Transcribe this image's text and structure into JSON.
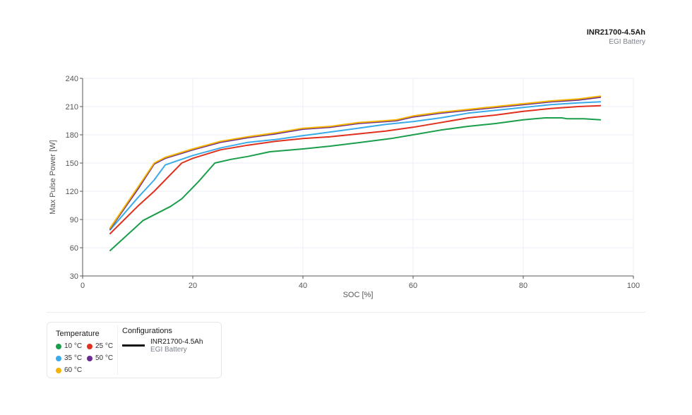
{
  "header": {
    "title": "INR21700-4.5Ah",
    "subtitle": "EGI Battery"
  },
  "legend": {
    "temperature_title": "Temperature",
    "temperatures": [
      {
        "label": "10 °C",
        "color": "#1a9e4a"
      },
      {
        "label": "25 °C",
        "color": "#e0301e"
      },
      {
        "label": "35 °C",
        "color": "#3aabea"
      },
      {
        "label": "50 °C",
        "color": "#6a2c91"
      },
      {
        "label": "60 °C",
        "color": "#f5b400"
      }
    ],
    "configurations_title": "Configurations",
    "configuration": {
      "name": "INR21700-4.5Ah",
      "sub": "EGI Battery",
      "line_color": "#111111"
    }
  },
  "chart_data": {
    "type": "line",
    "title": "INR21700-4.5Ah",
    "subtitle": "EGI Battery",
    "xlabel": "SOC [%]",
    "ylabel": "Max Pulse Power [W]",
    "xlim": [
      0,
      100
    ],
    "ylim": [
      30,
      240
    ],
    "xticks": [
      0,
      20,
      40,
      60,
      80,
      100
    ],
    "yticks": [
      30,
      60,
      90,
      120,
      150,
      180,
      210,
      240
    ],
    "grid": true,
    "legend_position": "bottom-left",
    "series": [
      {
        "name": "10 °C",
        "color": "#1a9e4a",
        "x": [
          5,
          11,
          13,
          16,
          18,
          21,
          24,
          27,
          30,
          34,
          40,
          45,
          52,
          56,
          60,
          65,
          70,
          75,
          80,
          84,
          87,
          88,
          91,
          94
        ],
        "y": [
          57,
          89,
          95,
          104,
          112,
          130,
          150,
          154,
          157,
          162,
          165,
          168,
          173,
          176,
          180,
          185,
          189,
          192,
          196,
          198,
          198,
          197,
          197,
          196
        ]
      },
      {
        "name": "25 °C",
        "color": "#e0301e",
        "x": [
          5,
          10,
          13,
          15,
          18,
          20,
          25,
          30,
          35,
          40,
          45,
          50,
          55,
          60,
          65,
          70,
          75,
          80,
          85,
          90,
          94
        ],
        "y": [
          75,
          104,
          120,
          132,
          150,
          155,
          164,
          169,
          173,
          176,
          178,
          181,
          184,
          188,
          193,
          198,
          201,
          205,
          208,
          210,
          211
        ]
      },
      {
        "name": "35 °C",
        "color": "#3aabea",
        "x": [
          5,
          10,
          13,
          15,
          20,
          25,
          30,
          35,
          40,
          45,
          50,
          55,
          60,
          65,
          70,
          75,
          80,
          85,
          90,
          94
        ],
        "y": [
          79,
          113,
          132,
          148,
          158,
          166,
          172,
          175,
          179,
          183,
          187,
          191,
          194,
          198,
          203,
          206,
          209,
          212,
          214,
          215
        ]
      },
      {
        "name": "50 °C",
        "color": "#6a2c91",
        "x": [
          5,
          10,
          13,
          15,
          20,
          25,
          30,
          35,
          40,
          45,
          50,
          55,
          57,
          60,
          65,
          70,
          75,
          80,
          85,
          90,
          94
        ],
        "y": [
          80,
          122,
          149,
          155,
          164,
          172,
          177,
          181,
          186,
          188,
          192,
          194,
          195,
          199,
          203,
          206,
          209,
          212,
          215,
          217,
          220
        ]
      },
      {
        "name": "60 °C",
        "color": "#f5b400",
        "x": [
          5,
          10,
          13,
          15,
          20,
          25,
          30,
          35,
          40,
          45,
          50,
          55,
          57,
          60,
          65,
          70,
          75,
          80,
          85,
          90,
          94
        ],
        "y": [
          81,
          124,
          150,
          156,
          165,
          173,
          178,
          182,
          187,
          189,
          193,
          195,
          196,
          200,
          204,
          207,
          210,
          213,
          216,
          218,
          221
        ]
      }
    ]
  }
}
